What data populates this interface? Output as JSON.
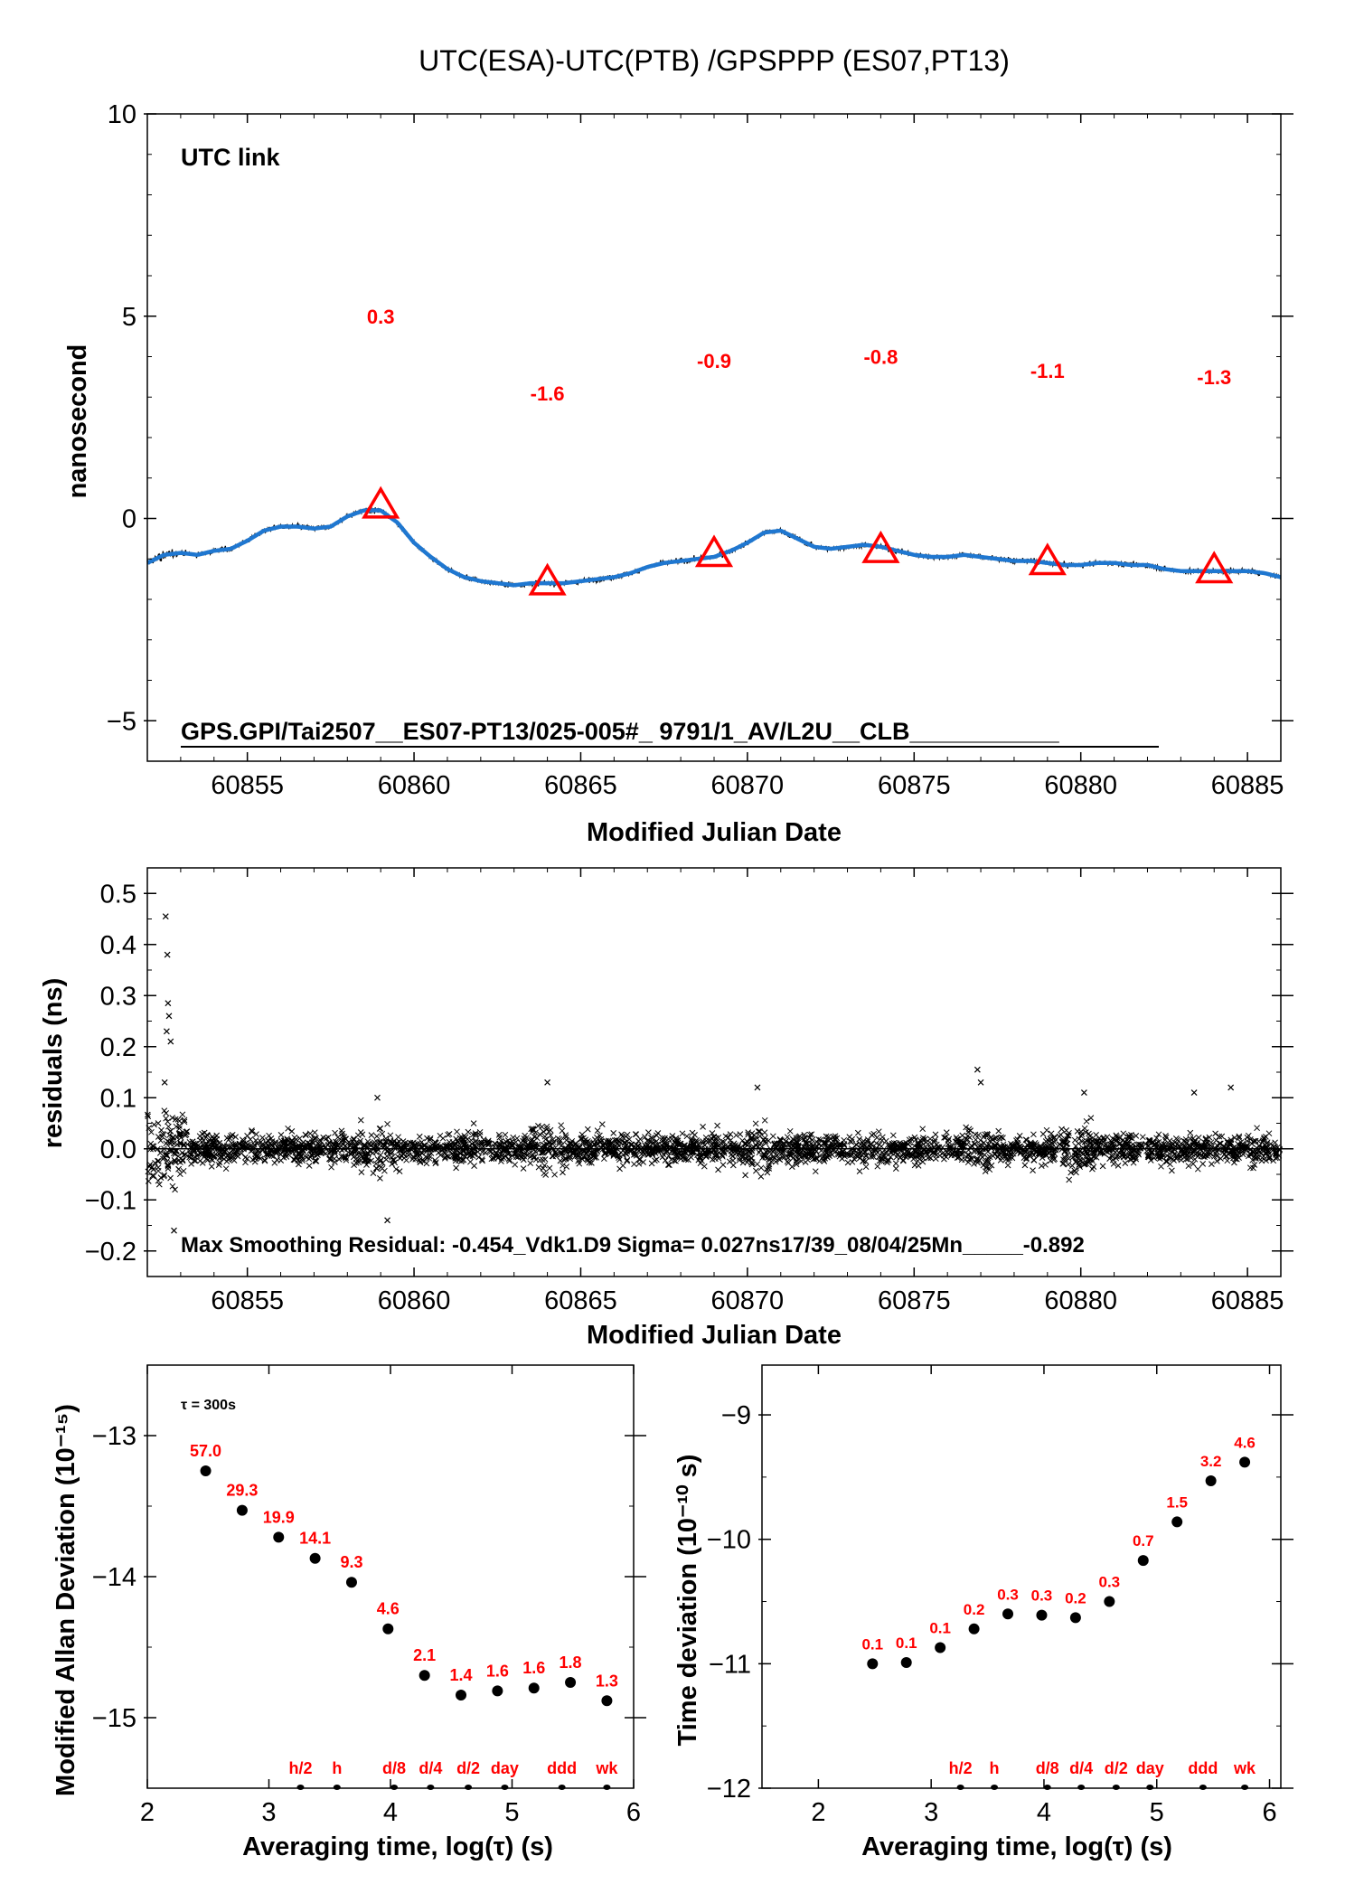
{
  "figure": {
    "title": "UTC(ESA)-UTC(PTB)  /GPSPPP  (ES07,PT13)"
  },
  "chart_data": [
    {
      "id": "time-series",
      "type": "line",
      "xlabel": "Modified Julian Date",
      "ylabel": "nanosecond",
      "xlim": [
        60852.0,
        60886.0
      ],
      "ylim": [
        -6.0,
        10.0
      ],
      "xticks": [
        60855,
        60860,
        60865,
        60870,
        60875,
        60880,
        60885
      ],
      "yticks": [
        -5,
        0,
        5,
        10
      ],
      "legend_text": "UTC link",
      "legend_color": "#6b8e23",
      "footnote": "GPS.GPI/Tai2507__ES07-PT13/025-005#_  9791/1_AV/L2U__CLB___________",
      "smooth_color": "#1f77d0",
      "raw_color": "#000000",
      "curve": {
        "x": [
          60852.0,
          60852.5,
          60853.0,
          60853.5,
          60854.0,
          60854.5,
          60855.0,
          60855.5,
          60856.0,
          60856.5,
          60857.0,
          60857.5,
          60858.0,
          60858.5,
          60859.0,
          60859.5,
          60860.0,
          60860.5,
          60861.0,
          60861.5,
          60862.0,
          60862.5,
          60863.0,
          60863.5,
          60864.0,
          60864.5,
          60865.0,
          60865.5,
          60866.0,
          60866.5,
          60867.0,
          60867.5,
          60868.0,
          60868.5,
          60869.0,
          60869.5,
          60870.0,
          60870.5,
          60871.0,
          60871.5,
          60872.0,
          60872.5,
          60873.0,
          60873.5,
          60874.0,
          60874.5,
          60875.0,
          60875.5,
          60876.0,
          60876.5,
          60877.0,
          60877.5,
          60878.0,
          60878.5,
          60879.0,
          60879.5,
          60880.0,
          60880.5,
          60881.0,
          60881.5,
          60882.0,
          60882.5,
          60883.0,
          60883.5,
          60884.0,
          60884.5,
          60885.0,
          60885.5,
          60886.0
        ],
        "y": [
          -1.1,
          -0.9,
          -0.85,
          -0.9,
          -0.8,
          -0.75,
          -0.55,
          -0.3,
          -0.2,
          -0.2,
          -0.25,
          -0.2,
          0.05,
          0.2,
          0.2,
          -0.1,
          -0.6,
          -0.95,
          -1.25,
          -1.45,
          -1.55,
          -1.6,
          -1.65,
          -1.6,
          -1.6,
          -1.6,
          -1.55,
          -1.5,
          -1.45,
          -1.35,
          -1.2,
          -1.1,
          -1.05,
          -1.0,
          -0.95,
          -0.8,
          -0.6,
          -0.35,
          -0.3,
          -0.5,
          -0.7,
          -0.75,
          -0.7,
          -0.65,
          -0.7,
          -0.8,
          -0.9,
          -0.95,
          -0.95,
          -0.9,
          -0.95,
          -1.0,
          -1.05,
          -1.05,
          -1.1,
          -1.15,
          -1.15,
          -1.1,
          -1.1,
          -1.15,
          -1.15,
          -1.25,
          -1.3,
          -1.3,
          -1.3,
          -1.3,
          -1.3,
          -1.35,
          -1.45
        ]
      },
      "markers": {
        "x": [
          60859.0,
          60864.0,
          60869.0,
          60874.0,
          60879.0,
          60884.0
        ],
        "y": [
          0.3,
          -1.6,
          -0.9,
          -0.8,
          -1.1,
          -1.3
        ],
        "labels": [
          "0.3",
          "-1.6",
          "-0.9",
          "-0.8",
          "-1.1",
          "-1.3"
        ],
        "label_y": [
          5.0,
          3.1,
          3.9,
          4.0,
          3.65,
          3.5
        ]
      }
    },
    {
      "id": "residuals",
      "type": "scatter",
      "xlabel": "Modified Julian Date",
      "ylabel": "residuals (ns)",
      "xlim": [
        60852.0,
        60886.0
      ],
      "ylim": [
        -0.25,
        0.55
      ],
      "xticks": [
        60855,
        60860,
        60865,
        60870,
        60875,
        60880,
        60885
      ],
      "yticks": [
        -0.2,
        -0.1,
        0.0,
        0.1,
        0.2,
        0.3,
        0.4,
        0.5
      ],
      "ytick_labels": [
        "−0.2",
        "−0.1",
        "0.0",
        "0.1",
        "0.2",
        "0.3",
        "0.4",
        "0.5"
      ],
      "note": "Max Smoothing Residual: -0.454_Vdk1.D9  Sigma= 0.027ns17/39_08/04/25Mn_____-0.892",
      "outliers": {
        "x": [
          60852.55,
          60852.6,
          60852.62,
          60852.65,
          60852.58,
          60852.7,
          60852.52,
          60858.9,
          60864.0,
          60870.3,
          60876.9,
          60877.0,
          60880.1,
          60883.4,
          60884.5,
          60852.8,
          60859.2
        ],
        "y": [
          0.455,
          0.38,
          0.285,
          0.26,
          0.23,
          0.21,
          0.13,
          0.1,
          0.13,
          0.12,
          0.155,
          0.13,
          0.11,
          0.11,
          0.12,
          -0.16,
          -0.14
        ]
      }
    },
    {
      "id": "mdev",
      "type": "scatter",
      "xlabel": "Averaging time, log(τ) (s)",
      "ylabel": "Modified Allan Deviation (10⁻¹⁵)",
      "xlim": [
        2.0,
        6.0
      ],
      "ylim": [
        -15.5,
        -12.5
      ],
      "xticks": [
        2,
        3,
        4,
        5,
        6
      ],
      "yticks": [
        -15,
        -14,
        -13
      ],
      "ytick_labels": [
        "−15",
        "−14",
        "−13"
      ],
      "tau_note": "τ = 300s",
      "x": [
        2.48,
        2.78,
        3.08,
        3.38,
        3.68,
        3.98,
        4.28,
        4.58,
        4.88,
        5.18,
        5.48,
        5.78
      ],
      "y": [
        -13.25,
        -13.53,
        -13.72,
        -13.87,
        -14.04,
        -14.37,
        -14.7,
        -14.84,
        -14.81,
        -14.79,
        -14.75,
        -14.88
      ],
      "labels": [
        "57.0",
        "29.3",
        "19.9",
        "14.1",
        "9.3",
        "4.6",
        "2.1",
        "1.4",
        "1.6",
        "1.6",
        "1.8",
        "1.3"
      ],
      "time_marks": {
        "x": [
          3.26,
          3.56,
          4.03,
          4.33,
          4.64,
          4.94,
          5.41,
          5.78
        ],
        "labels": [
          "h/2",
          "h",
          "d/8",
          "d/4",
          "d/2",
          "day",
          "ddd",
          "wk"
        ]
      }
    },
    {
      "id": "tdev",
      "type": "scatter",
      "xlabel": "Averaging time, log(τ) (s)",
      "ylabel": "Time deviation (10⁻¹⁰ s)",
      "xlim": [
        1.5,
        6.1
      ],
      "ylim": [
        -12.0,
        -8.6
      ],
      "xticks": [
        2,
        3,
        4,
        5,
        6
      ],
      "yticks": [
        -12,
        -11,
        -10,
        -9
      ],
      "ytick_labels": [
        "−12",
        "−11",
        "−10",
        "−9"
      ],
      "x": [
        2.48,
        2.78,
        3.08,
        3.38,
        3.68,
        3.98,
        4.28,
        4.58,
        4.88,
        5.18,
        5.48,
        5.78
      ],
      "y": [
        -11.0,
        -10.99,
        -10.87,
        -10.72,
        -10.6,
        -10.61,
        -10.63,
        -10.5,
        -10.17,
        -9.86,
        -9.53,
        -9.38
      ],
      "labels": [
        "0.1",
        "0.1",
        "0.1",
        "0.2",
        "0.3",
        "0.3",
        "0.2",
        "0.3",
        "0.7",
        "1.5",
        "3.2",
        "4.6"
      ],
      "time_marks": {
        "x": [
          3.26,
          3.56,
          4.03,
          4.33,
          4.64,
          4.94,
          5.41,
          5.78
        ],
        "labels": [
          "h/2",
          "h",
          "d/8",
          "d/4",
          "d/2",
          "day",
          "ddd",
          "wk"
        ]
      }
    }
  ]
}
